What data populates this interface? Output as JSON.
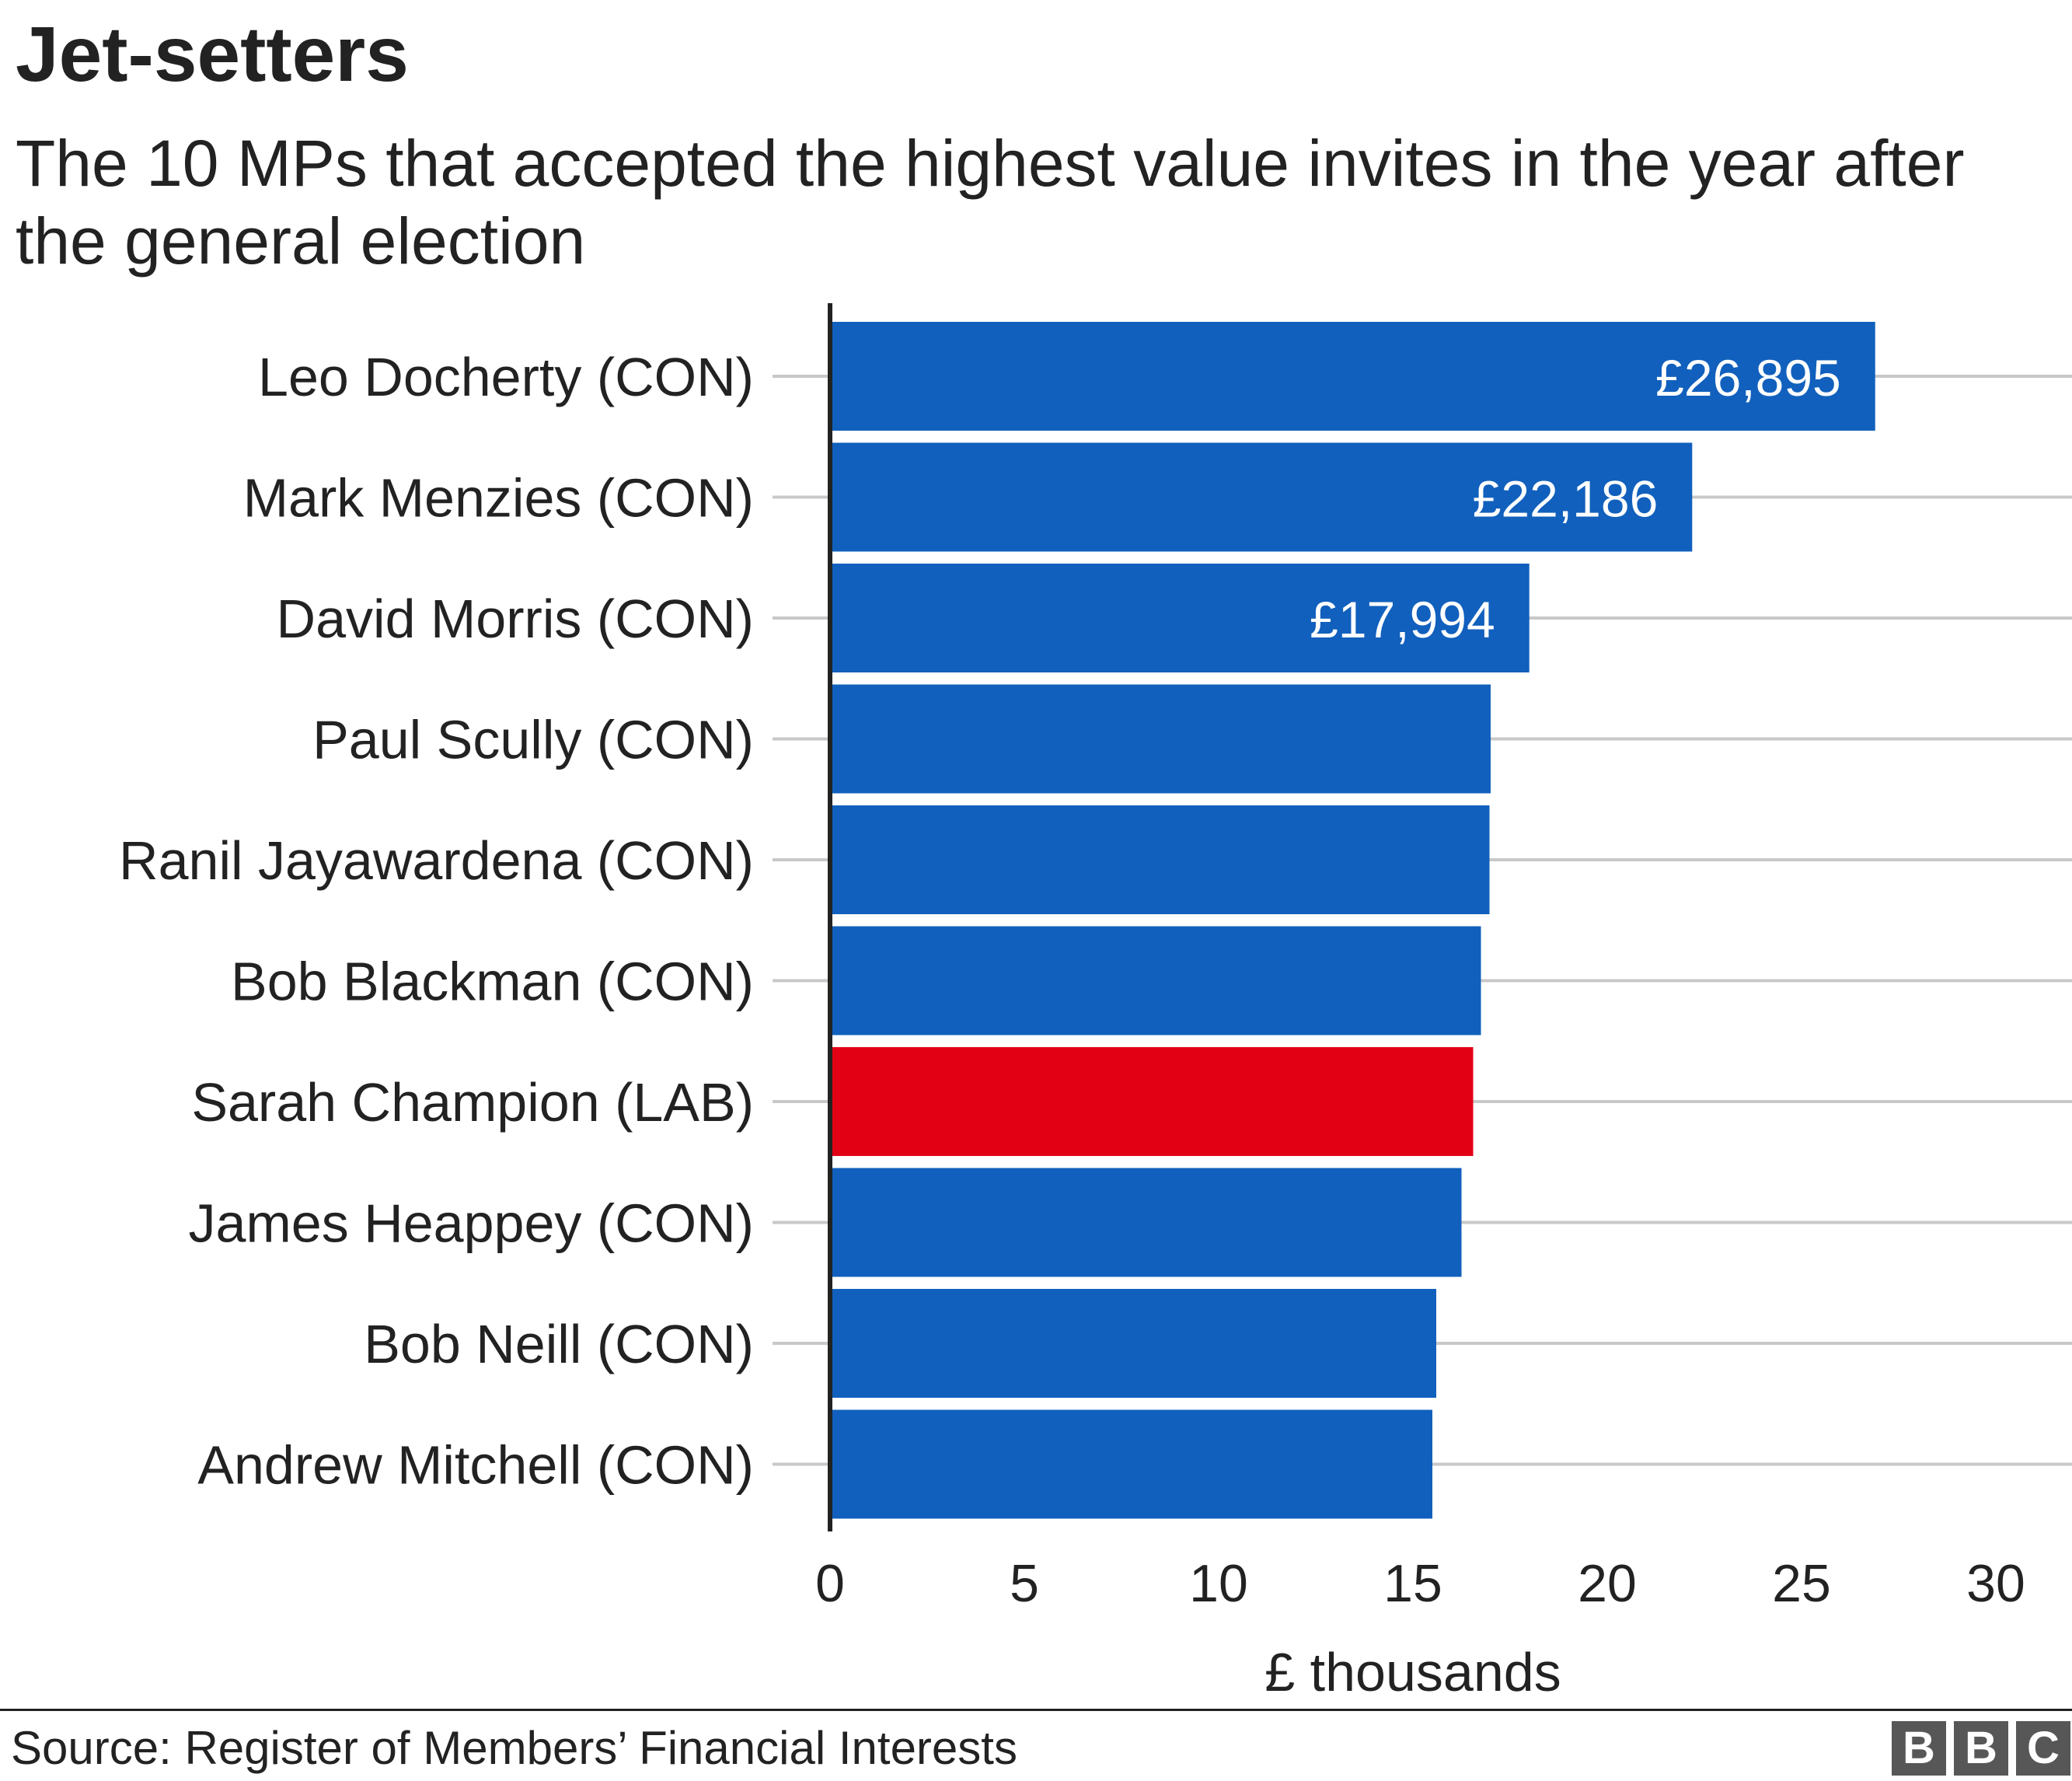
{
  "title": "Jet-setters",
  "subtitle": "The 10 MPs that accepted the highest value invites in the year after the general election",
  "source": "Source: Register of Members’ Financial Interests",
  "logo": [
    "B",
    "B",
    "C"
  ],
  "colors": {
    "con": "#1160BD",
    "lab": "#E20015",
    "grid": "#C8C8C8",
    "axis": "#222222",
    "text": "#222222"
  },
  "chart_data": {
    "type": "bar",
    "orientation": "horizontal",
    "xlabel": "£ thousands",
    "xlim": [
      0,
      30
    ],
    "xticks": [
      0,
      5,
      10,
      15,
      20,
      25,
      30
    ],
    "grid": true,
    "categories": [
      "Leo Docherty (CON)",
      "Mark Menzies (CON)",
      "David Morris (CON)",
      "Paul Scully (CON)",
      "Ranil Jayawardena (CON)",
      "Bob Blackman (CON)",
      "Sarah Champion (LAB)",
      "James Heappey (CON)",
      "Bob Neill (CON)",
      "Andrew Mitchell (CON)"
    ],
    "values": [
      26.895,
      22.186,
      17.994,
      17.0,
      16.97,
      16.75,
      16.55,
      16.25,
      15.6,
      15.5
    ],
    "parties": [
      "con",
      "con",
      "con",
      "con",
      "con",
      "con",
      "lab",
      "con",
      "con",
      "con"
    ],
    "data_labels": [
      "£26,895",
      "£22,186",
      "£17,994",
      "",
      "",
      "",
      "",
      "",
      "",
      ""
    ]
  }
}
